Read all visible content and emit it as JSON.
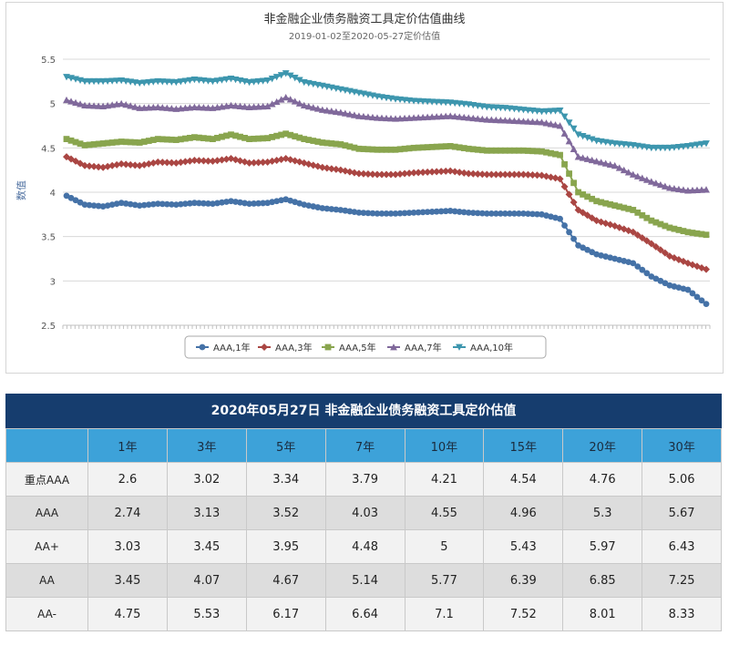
{
  "chart_data": {
    "type": "line",
    "title": "非金融企业债务融资工具定价估值曲线",
    "subtitle": "2019-01-02至2020-05-27定价估值",
    "ylabel": "数值",
    "ylim": [
      2.5,
      5.5
    ],
    "yticks": [
      "2.5",
      "3",
      "3.5",
      "4",
      "4.5",
      "5",
      "5.5"
    ],
    "x_range": [
      "2019-01-02",
      "2020-05-27"
    ],
    "grid": true,
    "legend_position": "bottom",
    "series": [
      {
        "name": "AAA,1年",
        "color": "#4572a7",
        "marker": "circle",
        "values": [
          3.96,
          3.86,
          3.84,
          3.88,
          3.85,
          3.87,
          3.86,
          3.88,
          3.87,
          3.9,
          3.87,
          3.88,
          3.92,
          3.86,
          3.82,
          3.8,
          3.77,
          3.76,
          3.76,
          3.77,
          3.78,
          3.79,
          3.77,
          3.76,
          3.76,
          3.76,
          3.75,
          3.7,
          3.4,
          3.3,
          3.25,
          3.2,
          3.05,
          2.95,
          2.9,
          2.74
        ]
      },
      {
        "name": "AAA,3年",
        "color": "#aa4643",
        "marker": "diamond",
        "values": [
          4.4,
          4.3,
          4.28,
          4.32,
          4.3,
          4.34,
          4.33,
          4.36,
          4.35,
          4.38,
          4.33,
          4.34,
          4.38,
          4.33,
          4.28,
          4.25,
          4.21,
          4.2,
          4.2,
          4.22,
          4.23,
          4.24,
          4.21,
          4.2,
          4.2,
          4.2,
          4.19,
          4.15,
          3.8,
          3.68,
          3.62,
          3.55,
          3.42,
          3.28,
          3.2,
          3.13
        ]
      },
      {
        "name": "AAA,5年",
        "color": "#89a54e",
        "marker": "square",
        "values": [
          4.6,
          4.53,
          4.55,
          4.57,
          4.56,
          4.6,
          4.59,
          4.62,
          4.6,
          4.65,
          4.6,
          4.61,
          4.66,
          4.6,
          4.56,
          4.54,
          4.49,
          4.48,
          4.48,
          4.5,
          4.51,
          4.52,
          4.49,
          4.47,
          4.47,
          4.47,
          4.46,
          4.42,
          4.0,
          3.9,
          3.85,
          3.8,
          3.68,
          3.6,
          3.55,
          3.52
        ]
      },
      {
        "name": "AAA,7年",
        "color": "#80699b",
        "marker": "triangle",
        "values": [
          5.04,
          4.98,
          4.97,
          5.0,
          4.95,
          4.96,
          4.94,
          4.96,
          4.95,
          4.98,
          4.96,
          4.97,
          5.07,
          4.98,
          4.93,
          4.9,
          4.86,
          4.84,
          4.83,
          4.84,
          4.85,
          4.86,
          4.84,
          4.82,
          4.81,
          4.8,
          4.79,
          4.75,
          4.4,
          4.35,
          4.3,
          4.2,
          4.12,
          4.05,
          4.02,
          4.03
        ]
      },
      {
        "name": "AAA,10年",
        "color": "#3d96ae",
        "marker": "triangle-down",
        "values": [
          5.3,
          5.25,
          5.25,
          5.26,
          5.23,
          5.25,
          5.24,
          5.27,
          5.25,
          5.28,
          5.24,
          5.26,
          5.34,
          5.24,
          5.2,
          5.16,
          5.12,
          5.08,
          5.05,
          5.03,
          5.02,
          5.01,
          4.99,
          4.96,
          4.95,
          4.93,
          4.91,
          4.92,
          4.65,
          4.58,
          4.55,
          4.53,
          4.5,
          4.5,
          4.52,
          4.55
        ]
      }
    ]
  },
  "table": {
    "title": "2020年05月27日  非金融企业债务融资工具定价估值",
    "corner": "",
    "columns": [
      "1年",
      "3年",
      "5年",
      "7年",
      "10年",
      "15年",
      "20年",
      "30年"
    ],
    "rows": [
      {
        "label": "重点AAA",
        "values": [
          "2.6",
          "3.02",
          "3.34",
          "3.79",
          "4.21",
          "4.54",
          "4.76",
          "5.06"
        ]
      },
      {
        "label": "AAA",
        "values": [
          "2.74",
          "3.13",
          "3.52",
          "4.03",
          "4.55",
          "4.96",
          "5.3",
          "5.67"
        ]
      },
      {
        "label": "AA+",
        "values": [
          "3.03",
          "3.45",
          "3.95",
          "4.48",
          "5",
          "5.43",
          "5.97",
          "6.43"
        ]
      },
      {
        "label": "AA",
        "values": [
          "3.45",
          "4.07",
          "4.67",
          "5.14",
          "5.77",
          "6.39",
          "6.85",
          "7.25"
        ]
      },
      {
        "label": "AA-",
        "values": [
          "4.75",
          "5.53",
          "6.17",
          "6.64",
          "7.1",
          "7.52",
          "8.01",
          "8.33"
        ]
      }
    ]
  }
}
